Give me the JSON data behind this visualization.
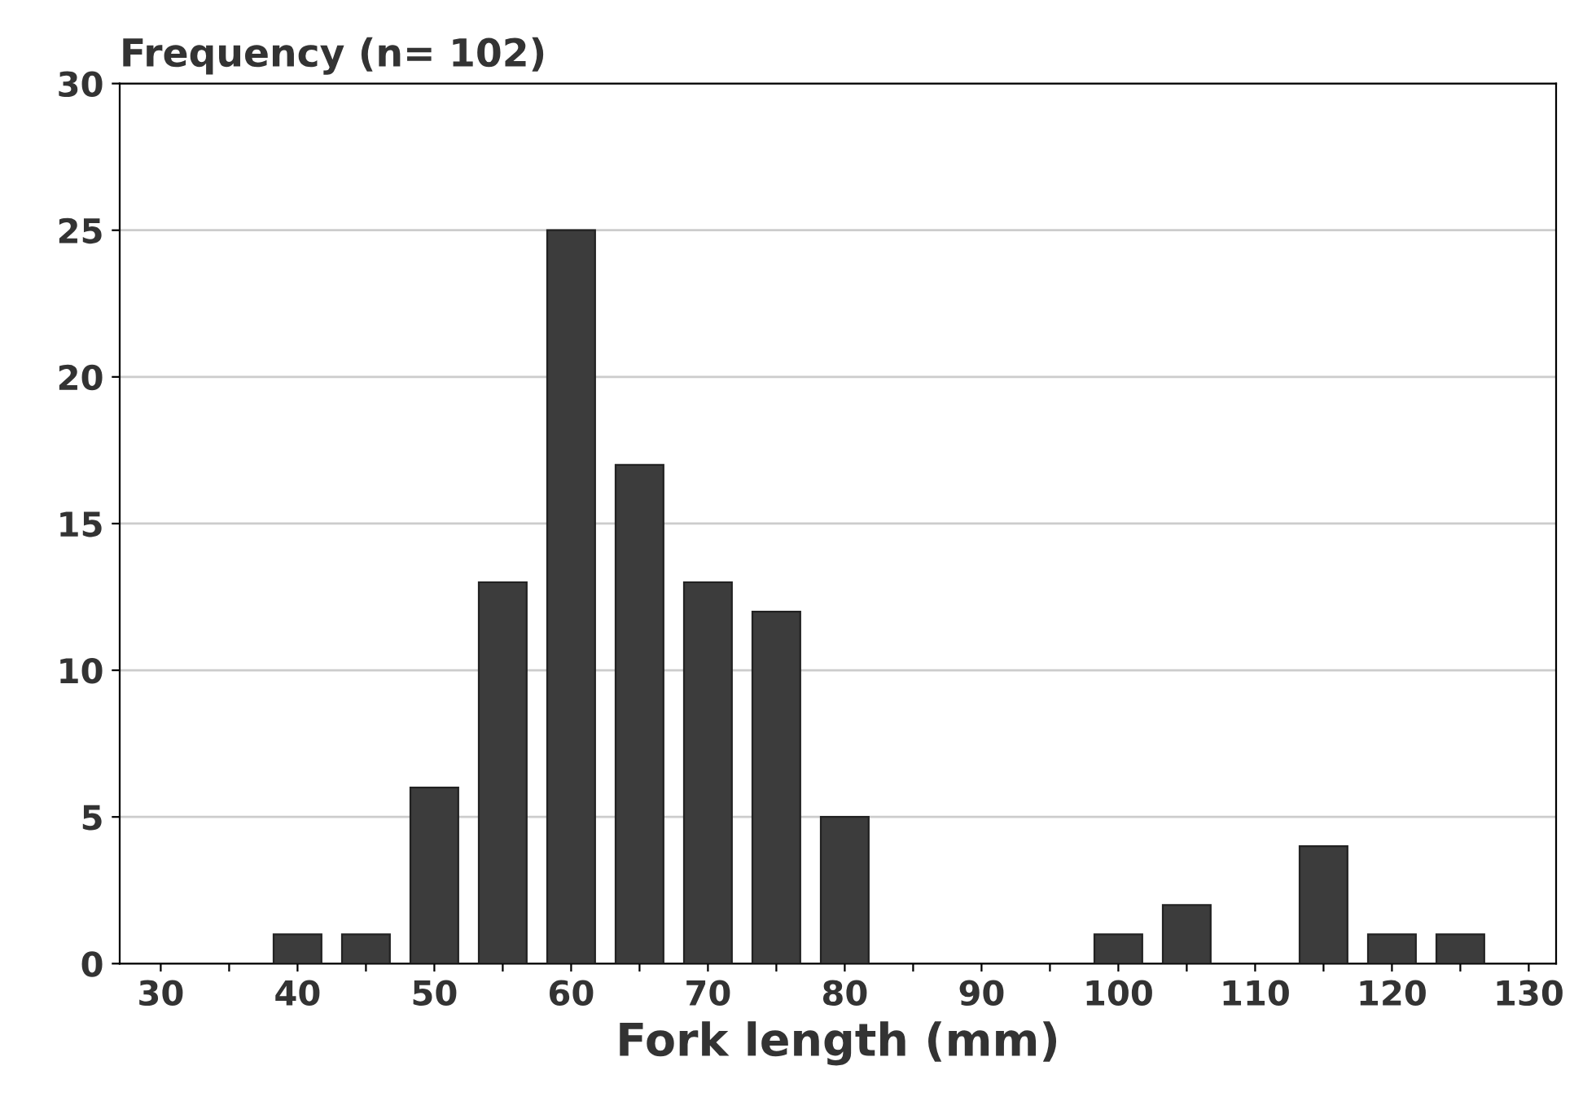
{
  "chart_data": {
    "type": "bar",
    "ylabel": "Frequency (n= 102)",
    "xlabel": "Fork length (mm)",
    "x": [
      40,
      45,
      50,
      55,
      60,
      65,
      70,
      75,
      80,
      100,
      105,
      115,
      120,
      125
    ],
    "values": [
      1,
      1,
      6,
      13,
      25,
      17,
      13,
      12,
      5,
      1,
      2,
      4,
      1,
      1
    ],
    "color": "#3c3c3c",
    "xlim": [
      27,
      132
    ],
    "ylim": [
      0,
      30
    ],
    "xticks": [
      30,
      {
        "value": 35,
        "label": null
      },
      40,
      {
        "value": 45,
        "label": null
      },
      50,
      {
        "value": 55,
        "label": null
      },
      60,
      {
        "value": 65,
        "label": null
      },
      70,
      {
        "value": 75,
        "label": null
      },
      80,
      {
        "value": 85,
        "label": null
      },
      90,
      {
        "value": 95,
        "label": null
      },
      100,
      {
        "value": 105,
        "label": null
      },
      110,
      {
        "value": 115,
        "label": null
      },
      120,
      {
        "value": 125,
        "label": null
      },
      130
    ],
    "yticks": [
      0,
      5,
      10,
      15,
      20,
      25,
      30
    ],
    "grid": "y"
  }
}
